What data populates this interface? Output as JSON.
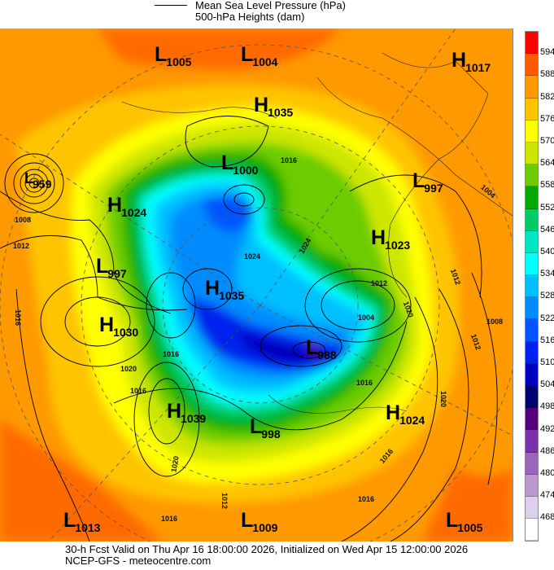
{
  "legend": {
    "line1": "Mean Sea Level Pressure (hPa)",
    "line2": "500-hPa Heights (dam)"
  },
  "colorbar": {
    "labels": [
      "594",
      "588",
      "582",
      "576",
      "570",
      "564",
      "558",
      "552",
      "546",
      "540",
      "534",
      "528",
      "522",
      "516",
      "510",
      "504",
      "498",
      "492",
      "486",
      "480",
      "474",
      "468"
    ],
    "colors": [
      "#ff0000",
      "#ff5a00",
      "#ff9900",
      "#ffc400",
      "#ffff00",
      "#cde600",
      "#6ccc00",
      "#00aa00",
      "#00cc66",
      "#00e6c3",
      "#00ffff",
      "#00bfff",
      "#008cff",
      "#0055ff",
      "#0022ee",
      "#0000c0",
      "#00006e",
      "#55007a",
      "#7a33a8",
      "#9966bb",
      "#bb99cf",
      "#ddd0ec",
      "#ffffff"
    ]
  },
  "centers": [
    {
      "type": "L",
      "value": "1005"
    },
    {
      "type": "L",
      "value": "1004"
    },
    {
      "type": "H",
      "value": "1017"
    },
    {
      "type": "H",
      "value": "1035"
    },
    {
      "type": "L",
      "value": "959"
    },
    {
      "type": "L",
      "value": "1000"
    },
    {
      "type": "L",
      "value": "997"
    },
    {
      "type": "H",
      "value": "1024"
    },
    {
      "type": "H",
      "value": "1023"
    },
    {
      "type": "L",
      "value": "997"
    },
    {
      "type": "H",
      "value": "1035"
    },
    {
      "type": "H",
      "value": "1030"
    },
    {
      "type": "L",
      "value": "988"
    },
    {
      "type": "H",
      "value": "1039"
    },
    {
      "type": "H",
      "value": "1024"
    },
    {
      "type": "L",
      "value": "998"
    },
    {
      "type": "L",
      "value": "1013"
    },
    {
      "type": "L",
      "value": "1009"
    },
    {
      "type": "L",
      "value": "1005"
    }
  ],
  "contour_labels": [
    "1008",
    "1012",
    "1016",
    "1020",
    "1016",
    "1016",
    "1024",
    "1024",
    "1016",
    "1012",
    "1004",
    "1020",
    "1016",
    "1020",
    "1012",
    "1004",
    "1012",
    "1008",
    "1020",
    "1016",
    "1016",
    "1016",
    "1012"
  ],
  "footer": {
    "line1": "30-h Fcst Valid on Thu Apr 16 18:00:00 2026, Initialized on Wed Apr 15 12:00:00 2026",
    "line2": "NCEP-GFS  - meteocentre.com"
  }
}
